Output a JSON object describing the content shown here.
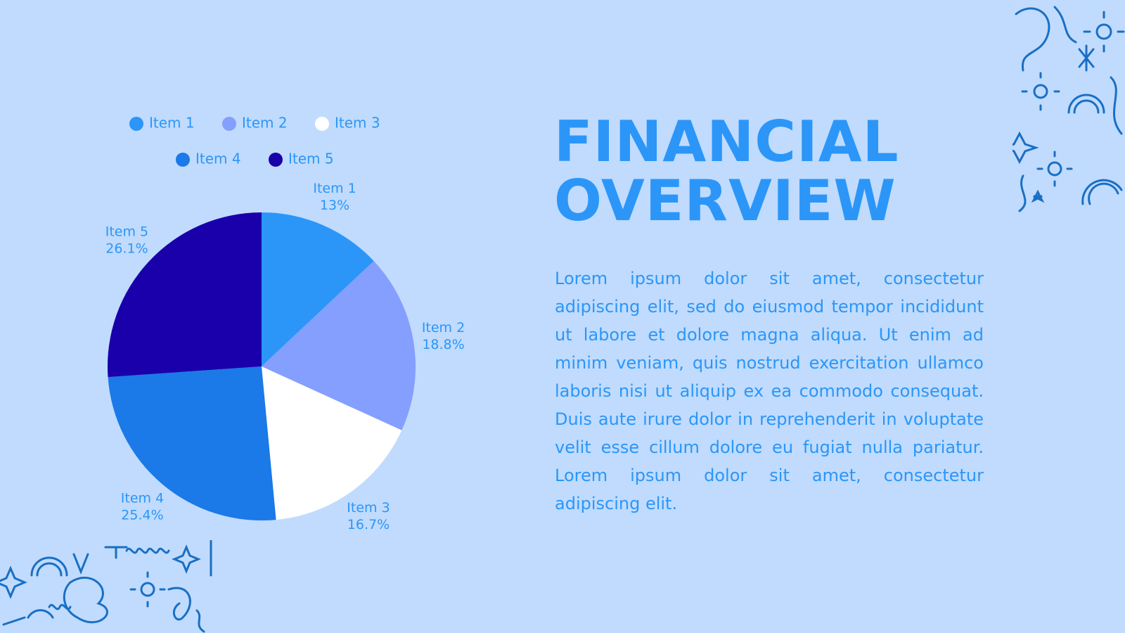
{
  "header": {
    "title": "FINANCIAL OVERVIEW"
  },
  "body": {
    "text": "Lorem ipsum dolor sit amet, consectetur adipiscing elit, sed do eiusmod tempor incididunt ut labore et dolore magna aliqua. Ut enim ad minim veniam, quis nostrud exercitation ullamco laboris nisi ut aliquip ex ea commodo consequat. Duis aute irure dolor in reprehenderit in voluptate velit esse cillum dolore eu fugiat nulla pariatur. Lorem ipsum dolor sit amet, consectetur adipiscing elit."
  },
  "chart_data": {
    "type": "pie",
    "categories": [
      "Item 1",
      "Item 2",
      "Item 3",
      "Item 4",
      "Item 5"
    ],
    "values": [
      13,
      18.8,
      16.7,
      25.4,
      26.1
    ],
    "value_labels": [
      "13%",
      "18.8%",
      "16.7%",
      "25.4%",
      "26.1%"
    ],
    "colors": [
      "#2b96f8",
      "#849ffd",
      "#ffffff",
      "#1b79e8",
      "#1a00aa"
    ],
    "legend": "top"
  }
}
